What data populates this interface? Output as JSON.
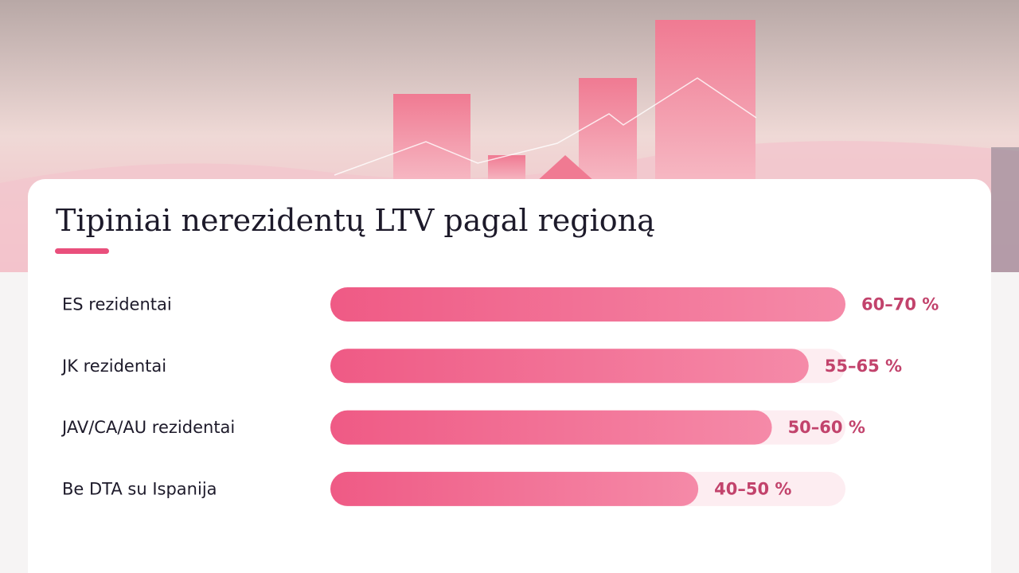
{
  "chart_data": {
    "type": "bar",
    "orientation": "horizontal",
    "title": "Tipiniai nerezidentų LTV pagal regioną",
    "categories": [
      "ES rezidentai",
      "JK rezidentai",
      "JAV/CA/AU rezidentai",
      "Be DTA su Ispanija"
    ],
    "values": [
      70,
      65,
      60,
      50
    ],
    "value_labels": [
      "60–70 %",
      "55–65 %",
      "50–60 %",
      "40–50 %"
    ],
    "color": "#ef5a85",
    "xlim": [
      0,
      70
    ]
  }
}
